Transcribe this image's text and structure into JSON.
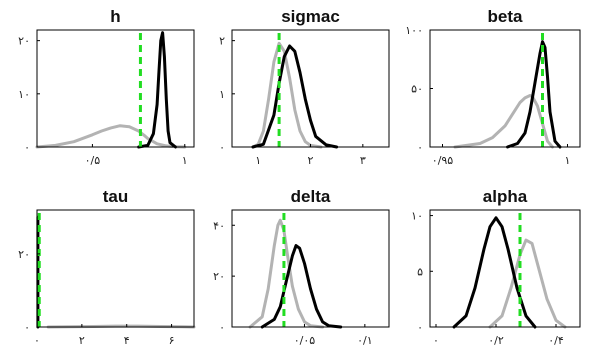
{
  "figure": {
    "colors": {
      "prior": "#b3b3b3",
      "posterior": "#000000",
      "mode_line": "#22dd22"
    }
  },
  "chart_data": [
    {
      "type": "line",
      "title": "h",
      "xlim": [
        0.2,
        1.05
      ],
      "ylim": [
        0,
        22
      ],
      "x_ticks": [
        {
          "value": 0.5,
          "label": "۰/۵"
        },
        {
          "value": 1.0,
          "label": "۱"
        }
      ],
      "y_ticks": [
        {
          "value": 0,
          "label": "۰"
        },
        {
          "value": 10,
          "label": "۱۰"
        },
        {
          "value": 20,
          "label": "۲۰"
        }
      ],
      "mode_line": 0.76,
      "series": [
        {
          "role": "prior",
          "x": [
            0.2,
            0.3,
            0.4,
            0.5,
            0.55,
            0.6,
            0.65,
            0.7,
            0.75,
            0.78,
            0.8,
            0.85,
            0.9,
            0.95,
            1.0
          ],
          "y": [
            0,
            0.3,
            1.0,
            2.3,
            3.0,
            3.6,
            4.0,
            3.8,
            3.0,
            2.2,
            1.6,
            0.6,
            0.2,
            0.05,
            0
          ]
        },
        {
          "role": "posterior",
          "x": [
            0.75,
            0.8,
            0.83,
            0.85,
            0.86,
            0.87,
            0.88,
            0.89,
            0.9,
            0.91,
            0.92,
            0.95
          ],
          "y": [
            0,
            0.3,
            2.5,
            8,
            14,
            20,
            21.5,
            17,
            9,
            3,
            0.8,
            0
          ]
        }
      ]
    },
    {
      "type": "line",
      "title": "sigmac",
      "xlim": [
        0.5,
        3.5
      ],
      "ylim": [
        0,
        2.2
      ],
      "x_ticks": [
        {
          "value": 1,
          "label": "۱"
        },
        {
          "value": 2,
          "label": "۲"
        },
        {
          "value": 3,
          "label": "۳"
        }
      ],
      "y_ticks": [
        {
          "value": 0,
          "label": "۰"
        },
        {
          "value": 1,
          "label": "۱"
        },
        {
          "value": 2,
          "label": "۲"
        }
      ],
      "mode_line": 1.4,
      "series": [
        {
          "role": "prior",
          "x": [
            0.9,
            1.0,
            1.1,
            1.2,
            1.3,
            1.4,
            1.5,
            1.6,
            1.7,
            1.8,
            1.9,
            2.0,
            2.2
          ],
          "y": [
            0,
            0.05,
            0.3,
            0.9,
            1.6,
            1.95,
            1.8,
            1.3,
            0.7,
            0.3,
            0.1,
            0.03,
            0
          ]
        },
        {
          "role": "posterior",
          "x": [
            0.9,
            1.1,
            1.3,
            1.4,
            1.5,
            1.6,
            1.7,
            1.8,
            1.9,
            2.0,
            2.1,
            2.3,
            2.5
          ],
          "y": [
            0,
            0.05,
            0.6,
            1.2,
            1.7,
            1.9,
            1.8,
            1.4,
            0.9,
            0.5,
            0.2,
            0.04,
            0
          ]
        }
      ]
    },
    {
      "type": "line",
      "title": "beta",
      "xlim": [
        0.945,
        1.005
      ],
      "ylim": [
        0,
        100
      ],
      "x_ticks": [
        {
          "value": 0.95,
          "label": "۰/۹۵"
        },
        {
          "value": 1.0,
          "label": "۱"
        }
      ],
      "y_ticks": [
        {
          "value": 0,
          "label": "۰"
        },
        {
          "value": 50,
          "label": "۵۰"
        },
        {
          "value": 100,
          "label": "۱۰۰"
        }
      ],
      "mode_line": 0.99,
      "series": [
        {
          "role": "prior",
          "x": [
            0.955,
            0.965,
            0.97,
            0.975,
            0.978,
            0.981,
            0.983,
            0.985,
            0.986,
            0.988,
            0.99,
            0.992,
            0.994
          ],
          "y": [
            0,
            3,
            8,
            18,
            28,
            38,
            42,
            44,
            43,
            35,
            20,
            5,
            0
          ]
        },
        {
          "role": "posterior",
          "x": [
            0.976,
            0.98,
            0.983,
            0.985,
            0.987,
            0.989,
            0.99,
            0.991,
            0.992,
            0.993,
            0.995,
            0.997
          ],
          "y": [
            0,
            3,
            12,
            30,
            55,
            80,
            90,
            85,
            60,
            30,
            5,
            0
          ]
        }
      ]
    },
    {
      "type": "line",
      "title": "tau",
      "xlim": [
        0,
        7
      ],
      "ylim": [
        0,
        32
      ],
      "x_ticks": [
        {
          "value": 0,
          "label": "۰"
        },
        {
          "value": 2,
          "label": "۲"
        },
        {
          "value": 4,
          "label": "۴"
        },
        {
          "value": 6,
          "label": "۶"
        }
      ],
      "y_ticks": [
        {
          "value": 0,
          "label": "۰"
        },
        {
          "value": 20,
          "label": "۲۰"
        }
      ],
      "mode_line": 0.1,
      "series": [
        {
          "role": "prior",
          "x": [
            0.5,
            1.5,
            2.5,
            3.5,
            4.5,
            5.5,
            6.5,
            7.0
          ],
          "y": [
            0,
            0.05,
            0.15,
            0.25,
            0.25,
            0.15,
            0.05,
            0
          ]
        },
        {
          "role": "posterior",
          "x": [
            0.04,
            0.04,
            0.04
          ],
          "y": [
            0,
            30,
            0
          ]
        }
      ]
    },
    {
      "type": "line",
      "title": "delta",
      "xlim": [
        -0.01,
        0.12
      ],
      "ylim": [
        0,
        46
      ],
      "x_ticks": [
        {
          "value": 0.05,
          "label": "۰/۰۵"
        },
        {
          "value": 0.1,
          "label": "۰/۱"
        }
      ],
      "y_ticks": [
        {
          "value": 0,
          "label": "۰"
        },
        {
          "value": 20,
          "label": "۲۰"
        },
        {
          "value": 40,
          "label": "۴۰"
        }
      ],
      "mode_line": 0.033,
      "series": [
        {
          "role": "prior",
          "x": [
            0.005,
            0.015,
            0.02,
            0.025,
            0.028,
            0.03,
            0.033,
            0.036,
            0.04,
            0.045,
            0.05,
            0.055,
            0.065
          ],
          "y": [
            0,
            4,
            15,
            32,
            40,
            42,
            38,
            28,
            16,
            7,
            2,
            0.5,
            0
          ]
        },
        {
          "role": "posterior",
          "x": [
            0.015,
            0.025,
            0.03,
            0.035,
            0.04,
            0.043,
            0.046,
            0.05,
            0.055,
            0.06,
            0.065,
            0.07,
            0.08
          ],
          "y": [
            0,
            3,
            8,
            18,
            28,
            32,
            31,
            25,
            15,
            7,
            2,
            0.5,
            0
          ]
        }
      ]
    },
    {
      "type": "line",
      "title": "alpha",
      "xlim": [
        -0.02,
        0.48
      ],
      "ylim": [
        0,
        10.5
      ],
      "x_ticks": [
        {
          "value": 0,
          "label": "۰"
        },
        {
          "value": 0.2,
          "label": "۰/۲"
        },
        {
          "value": 0.4,
          "label": "۰/۴"
        }
      ],
      "y_ticks": [
        {
          "value": 0,
          "label": "۰"
        },
        {
          "value": 5,
          "label": "۵"
        },
        {
          "value": 10,
          "label": "۱۰"
        }
      ],
      "mode_line": 0.28,
      "series": [
        {
          "role": "prior",
          "x": [
            0.18,
            0.22,
            0.25,
            0.28,
            0.3,
            0.32,
            0.34,
            0.37,
            0.4,
            0.43
          ],
          "y": [
            0,
            1,
            3.5,
            6.5,
            7.8,
            7.5,
            5.5,
            2.5,
            0.6,
            0
          ]
        },
        {
          "role": "posterior",
          "x": [
            0.06,
            0.1,
            0.13,
            0.16,
            0.18,
            0.2,
            0.22,
            0.24,
            0.27,
            0.3,
            0.33
          ],
          "y": [
            0,
            1,
            3.5,
            7,
            9,
            9.8,
            9,
            7,
            3.5,
            1,
            0
          ]
        }
      ]
    }
  ]
}
